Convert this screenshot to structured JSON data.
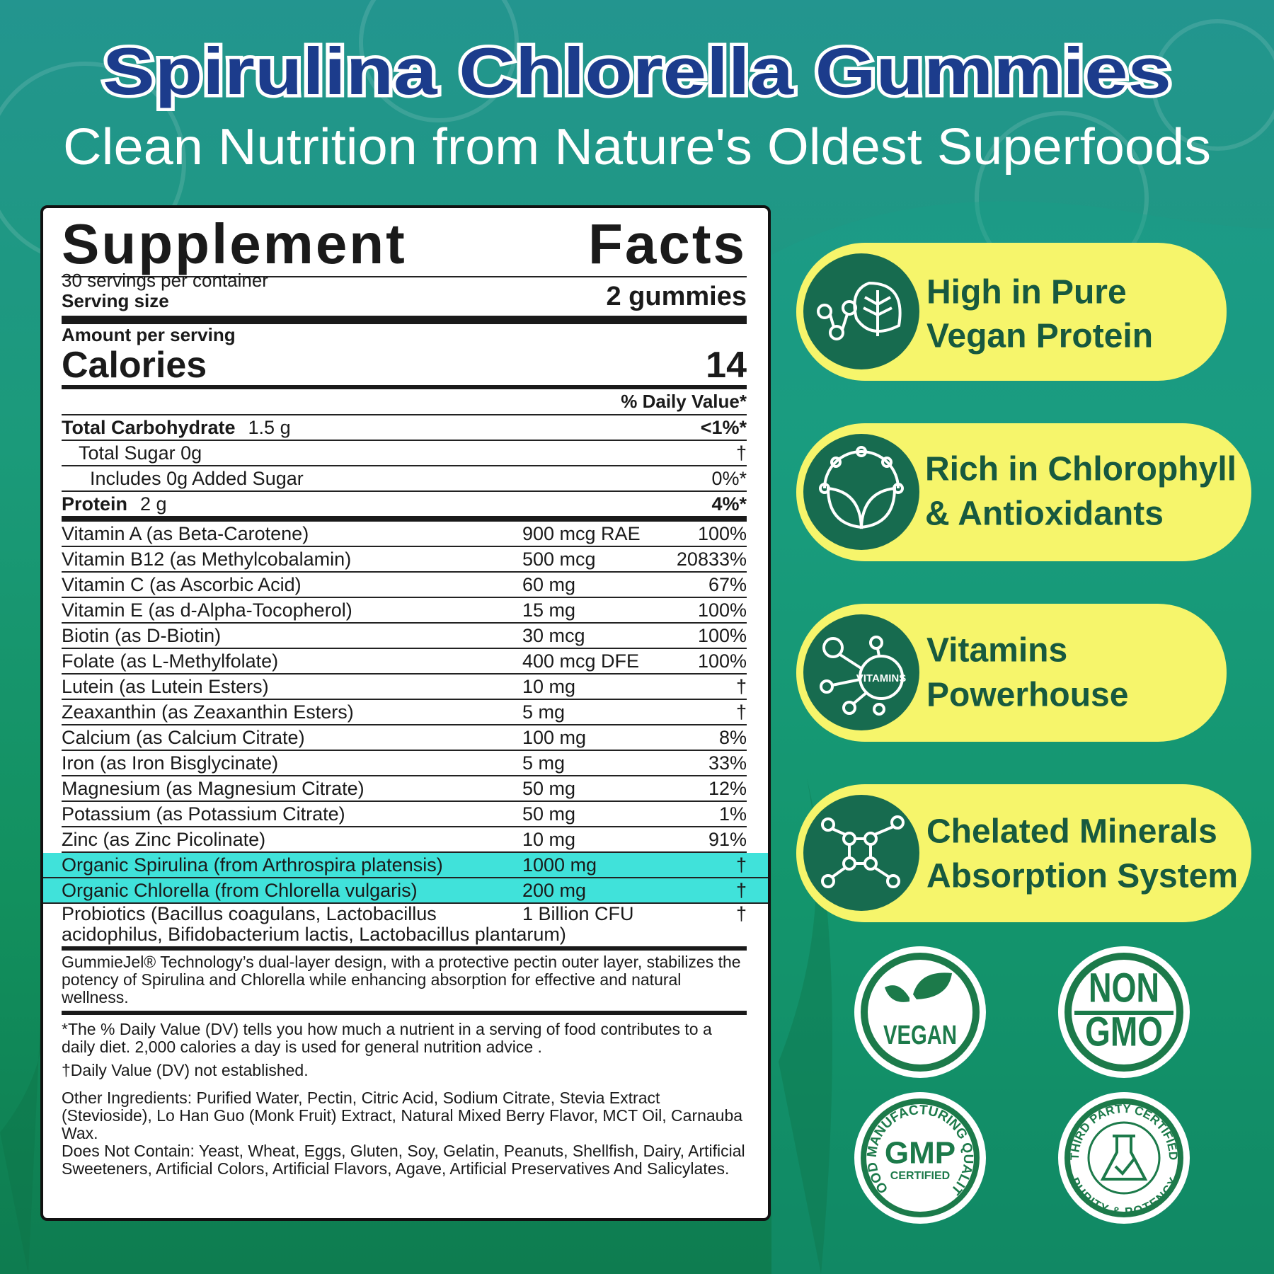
{
  "header": {
    "title": "Spirulina Chlorella Gummies",
    "subtitle": "Clean Nutrition from Nature's Oldest Superfoods"
  },
  "facts": {
    "title": "Supplement Facts",
    "servings": "30 servings per container",
    "serving_size_label": "Serving size",
    "serving_size": "2 gummies",
    "amount_label": "Amount per serving",
    "calories_label": "Calories",
    "calories": 14,
    "dv_header": "% Daily Value*",
    "macros": [
      {
        "name": "Total Carbohydrate",
        "amount": "1.5 g",
        "dv": "<1%*"
      },
      {
        "name": "Total Sugar 0g",
        "dv": "†"
      },
      {
        "name": "Includes 0g Added Sugar",
        "dv": "0%*"
      },
      {
        "name": "Protein",
        "amount": "2 g",
        "dv": "4%*"
      }
    ],
    "nutrients": [
      {
        "name": "Vitamin A (as Beta-Carotene)",
        "amount": "900 mcg RAE",
        "dv": "100%"
      },
      {
        "name": "Vitamin B12 (as Methylcobalamin)",
        "amount": "500 mcg",
        "dv": "20833%"
      },
      {
        "name": "Vitamin C (as Ascorbic Acid)",
        "amount": "60 mg",
        "dv": "67%"
      },
      {
        "name": "Vitamin E (as d-Alpha-Tocopherol)",
        "amount": "15 mg",
        "dv": "100%"
      },
      {
        "name": "Biotin (as D-Biotin)",
        "amount": "30 mcg",
        "dv": "100%"
      },
      {
        "name": "Folate (as L-Methylfolate)",
        "amount": "400 mcg DFE",
        "dv": "100%"
      },
      {
        "name": "Lutein (as Lutein Esters)",
        "amount": "10 mg",
        "dv": "†"
      },
      {
        "name": "Zeaxanthin (as Zeaxanthin Esters)",
        "amount": "5 mg",
        "dv": "†"
      },
      {
        "name": "Calcium (as Calcium Citrate)",
        "amount": "100 mg",
        "dv": "8%"
      },
      {
        "name": "Iron (as Iron Bisglycinate)",
        "amount": "5 mg",
        "dv": "33%"
      },
      {
        "name": "Magnesium (as Magnesium Citrate)",
        "amount": "50 mg",
        "dv": "12%"
      },
      {
        "name": "Potassium (as Potassium Citrate)",
        "amount": "50 mg",
        "dv": "1%"
      },
      {
        "name": "Zinc (as Zinc Picolinate)",
        "amount": "10 mg",
        "dv": "91%"
      },
      {
        "name": "Organic Spirulina (from Arthrospira platensis)",
        "amount": "1000 mg",
        "dv": "†",
        "highlight": true
      },
      {
        "name": "Organic Chlorella (from Chlorella vulgaris)",
        "amount": "200 mg",
        "dv": "†",
        "highlight": true
      },
      {
        "name": "Probiotics (Bacillus coagulans, Lactobacillus acidophilus, Bifidobacterium lactis, Lactobacillus plantarum)",
        "amount": "1 Billion CFU",
        "dv": "†"
      }
    ],
    "technology_note": "GummieJel® Technology’s dual-layer design, with a protective pectin outer layer, stabilizes the potency of Spirulina and Chlorella while enhancing absorption for effective and natural wellness.",
    "dv_note": "*The % Daily Value (DV) tells you how much a nutrient in a serving of food contributes to a daily diet. 2,000 calories a day is used for general nutrition advice .",
    "dagger_note": "†Daily Value (DV) not established.",
    "other_ingredients": "Other Ingredients: Purified Water, Pectin, Citric Acid, Sodium Citrate, Stevia Extract (Stevioside), Lo Han Guo (Monk Fruit) Extract, Natural Mixed Berry Flavor, MCT Oil, Carnauba Wax.",
    "does_not_contain": "Does Not Contain: Yeast, Wheat, Eggs, Gluten, Soy, Gelatin, Peanuts, Shellfish, Dairy, Artificial Sweeteners, Artificial Colors, Artificial Flavors, Agave, Artificial Preservatives And Salicylates."
  },
  "features": [
    {
      "lines": [
        "High in Pure",
        "Vegan Protein"
      ]
    },
    {
      "lines": [
        "Rich in Chlorophyll",
        "& Antioxidants"
      ]
    },
    {
      "lines": [
        "Vitamins",
        "Powerhouse"
      ],
      "icon_text": "VITAMINS"
    },
    {
      "lines": [
        "Chelated Minerals",
        "Absorption System"
      ]
    }
  ],
  "badges": {
    "vegan": "VEGAN",
    "non_gmo": [
      "NON",
      "GMO"
    ],
    "gmp": {
      "arc": "GOOD MANUFACTURING QUALITY",
      "main": "GMP",
      "sub": "CERTIFIED"
    },
    "third_party": {
      "top": "THIRD PARTY CERTIFIED",
      "bottom": "PURITY & POTENCY"
    }
  }
}
